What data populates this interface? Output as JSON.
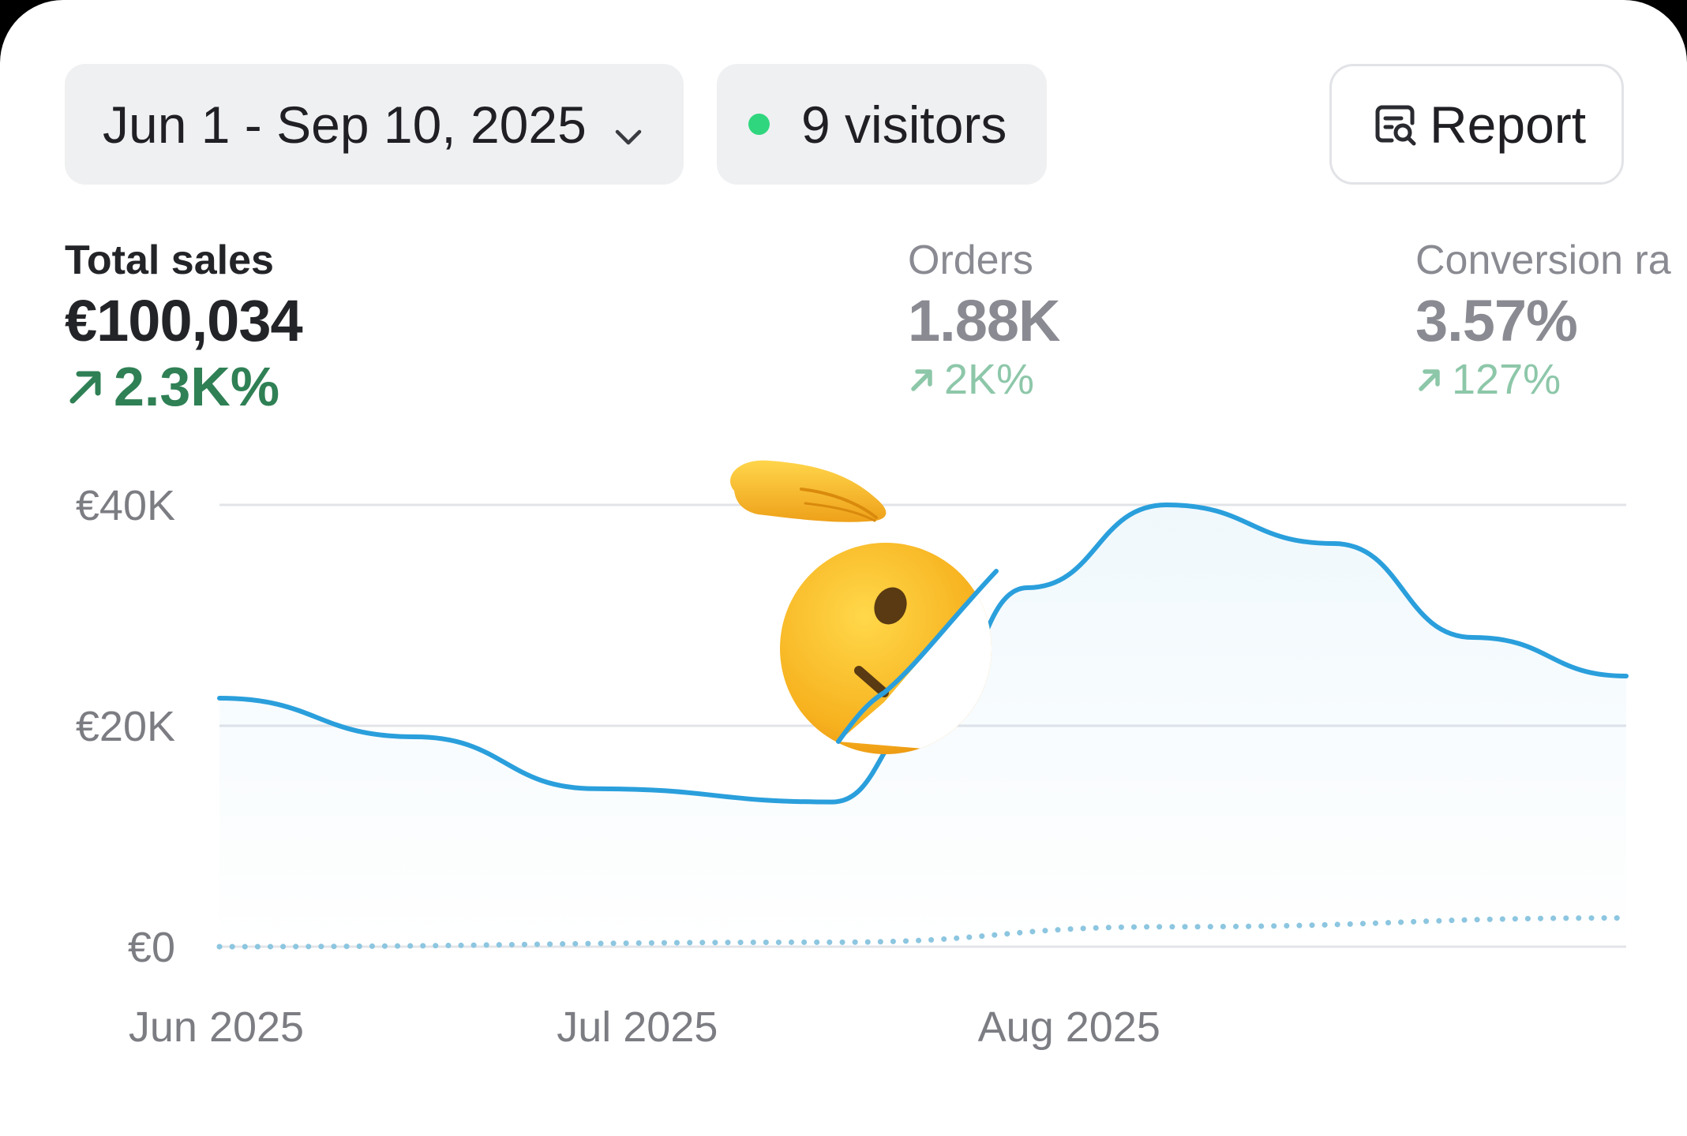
{
  "toolbar": {
    "date_range": "Jun 1 - Sep 10, 2025",
    "visitors_label": "9 visitors",
    "report_label": "Report"
  },
  "metrics": {
    "sales": {
      "label": "Total sales",
      "value": "€100,034",
      "change": "2.3K%"
    },
    "orders": {
      "label": "Orders",
      "value": "1.88K",
      "change": "2K%"
    },
    "conversion": {
      "label": "Conversion ra",
      "value": "3.57%",
      "change": "127%"
    }
  },
  "colors": {
    "accent_line": "#2a9fdc",
    "comparison_line": "#8cc6e0",
    "positive": "#2f8055",
    "live_dot": "#2fd67e"
  },
  "overlay": {
    "emoji": "saluting-face-emoji"
  },
  "chart_data": {
    "type": "line",
    "x_tick_labels": [
      "Jun 2025",
      "Jul 2025",
      "Aug 2025"
    ],
    "y_tick_labels": [
      "€40K",
      "€20K",
      "€0"
    ],
    "ylim": [
      0,
      40000
    ],
    "grid": true,
    "series": [
      {
        "style": "solid",
        "color": "#2a9fdc",
        "points": [
          {
            "x": "2025-06-01",
            "y": 22500
          },
          {
            "x": "2025-06-15",
            "y": 19000
          },
          {
            "x": "2025-06-28",
            "y": 14300
          },
          {
            "x": "2025-07-15",
            "y": 13100
          },
          {
            "x": "2025-07-22",
            "y": 21000
          },
          {
            "x": "2025-07-29",
            "y": 32500
          },
          {
            "x": "2025-08-08",
            "y": 40000
          },
          {
            "x": "2025-08-20",
            "y": 36500
          },
          {
            "x": "2025-08-30",
            "y": 28000
          },
          {
            "x": "2025-09-10",
            "y": 24500
          }
        ]
      },
      {
        "style": "dotted",
        "color": "#8cc6e0",
        "points": [
          {
            "x": "2025-06-01",
            "y": 0
          },
          {
            "x": "2025-07-15",
            "y": 400
          },
          {
            "x": "2025-08-08",
            "y": 1800
          },
          {
            "x": "2025-09-10",
            "y": 2600
          }
        ]
      }
    ]
  }
}
